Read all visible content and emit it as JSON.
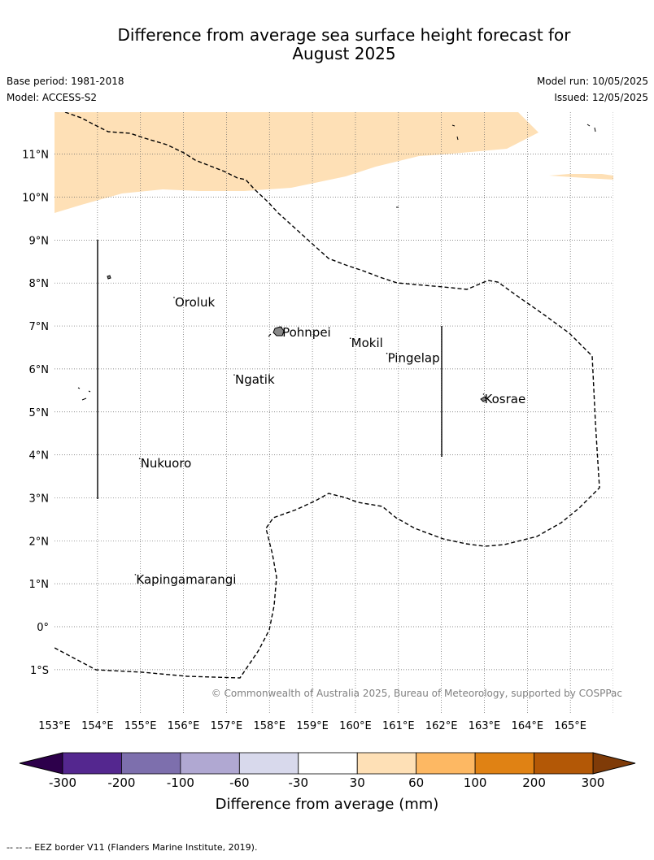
{
  "title_line1": "Difference from average sea surface height forecast for",
  "title_line2": "August 2025",
  "base_period": "Base period: 1981-2018",
  "model": "Model: ACCESS-S2",
  "model_run": "Model run: 10/05/2025",
  "issued": "Issued: 12/05/2025",
  "copyright": "© Commonwealth of Australia 2025, Bureau of Meteorology, supported by COSPPac",
  "lon_labels": [
    "153°E",
    "154°E",
    "155°E",
    "156°E",
    "157°E",
    "158°E",
    "159°E",
    "160°E",
    "161°E",
    "162°E",
    "163°E",
    "164°E",
    "165°E"
  ],
  "lat_labels": [
    "11°N",
    "10°N",
    "9°N",
    "8°N",
    "7°N",
    "6°N",
    "5°N",
    "4°N",
    "3°N",
    "2°N",
    "1°N",
    "0°",
    "1°S"
  ],
  "places": [
    {
      "name": "Oroluk",
      "lon": 155.8,
      "lat": 7.55
    },
    {
      "name": "Pohnpei",
      "lon": 158.3,
      "lat": 6.85
    },
    {
      "name": "Mokil",
      "lon": 159.9,
      "lat": 6.6
    },
    {
      "name": "Pingelap",
      "lon": 160.75,
      "lat": 6.25
    },
    {
      "name": "Ngatik",
      "lon": 157.2,
      "lat": 5.75
    },
    {
      "name": "Kosrae",
      "lon": 163.0,
      "lat": 5.3
    },
    {
      "name": "Nukuoro",
      "lon": 155.0,
      "lat": 3.8
    },
    {
      "name": "Kapingamarangi",
      "lon": 154.9,
      "lat": 1.1
    }
  ],
  "colorbar": {
    "label": "Difference from average (mm)",
    "ticks": [
      "-300",
      "-200",
      "-100",
      "-60",
      "-30",
      "30",
      "60",
      "100",
      "200",
      "300"
    ],
    "colors": [
      "#54278f",
      "#7d6fad",
      "#b0a8d2",
      "#d8d9ec",
      "#ffffff",
      "#fee0b6",
      "#fdb863",
      "#e08214",
      "#b35806"
    ],
    "under_color": "#2d004b",
    "over_color": "#7f3b08"
  },
  "land_color": "#fee0b6",
  "footer": "--  --  -- EEZ border V11 (Flanders Marine Institute, 2019)."
}
